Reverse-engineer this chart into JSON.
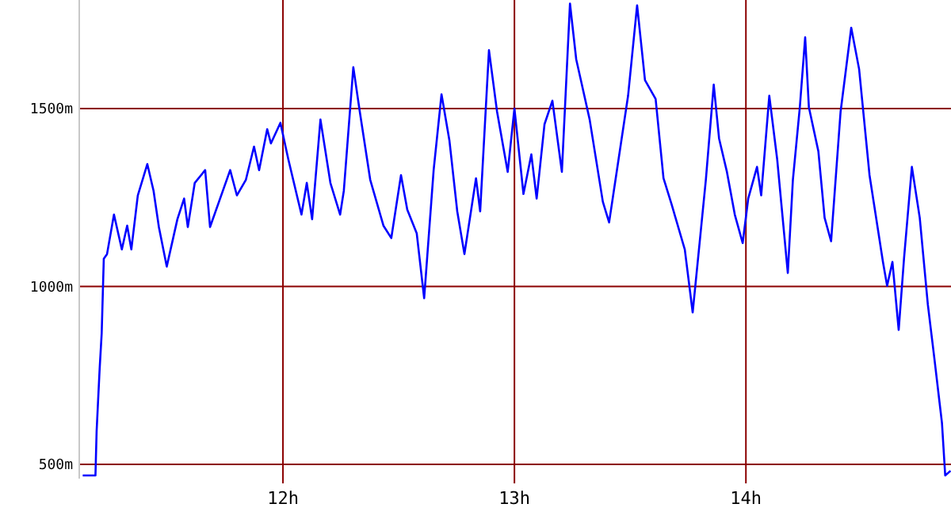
{
  "chart_data": {
    "type": "line",
    "xlim": [
      11.12,
      14.886
    ],
    "ylim": [
      460,
      1805
    ],
    "xticks": [
      {
        "value": 12,
        "label": "12h"
      },
      {
        "value": 13,
        "label": "13h"
      },
      {
        "value": 14,
        "label": "14h"
      }
    ],
    "yticks": [
      {
        "value": 500,
        "label": "500m"
      },
      {
        "value": 1000,
        "label": "1000m"
      },
      {
        "value": 1500,
        "label": "1500m"
      }
    ],
    "grid": true,
    "marker": "none",
    "line_style": "solid",
    "series": [
      {
        "color": "#0000ff",
        "x": [
          11.135,
          11.19,
          11.195,
          11.208,
          11.217,
          11.226,
          11.24,
          11.27,
          11.304,
          11.327,
          11.345,
          11.373,
          11.414,
          11.441,
          11.464,
          11.498,
          11.544,
          11.573,
          11.589,
          11.619,
          11.664,
          11.685,
          11.772,
          11.801,
          11.84,
          11.875,
          11.897,
          11.932,
          11.948,
          11.989,
          12.023,
          12.08,
          12.103,
          12.126,
          12.162,
          12.205,
          12.247,
          12.263,
          12.304,
          12.332,
          12.377,
          12.434,
          12.468,
          12.51,
          12.537,
          12.578,
          12.61,
          12.651,
          12.685,
          12.719,
          12.753,
          12.784,
          12.834,
          12.852,
          12.89,
          12.925,
          12.971,
          13.0,
          13.039,
          13.073,
          13.096,
          13.13,
          13.164,
          13.205,
          13.24,
          13.267,
          13.29,
          13.325,
          13.382,
          13.409,
          13.45,
          13.491,
          13.53,
          13.564,
          13.61,
          13.644,
          13.678,
          13.736,
          13.77,
          13.804,
          13.827,
          13.861,
          13.884,
          13.918,
          13.952,
          13.986,
          14.01,
          14.048,
          14.066,
          14.101,
          14.135,
          14.181,
          14.203,
          14.233,
          14.256,
          14.272,
          14.313,
          14.34,
          14.368,
          14.409,
          14.455,
          14.489,
          14.534,
          14.592,
          14.61,
          14.633,
          14.66,
          14.683,
          14.717,
          14.751,
          14.786,
          14.815,
          14.847,
          14.861,
          14.884
        ],
        "values": [
          469,
          469,
          593,
          767,
          869,
          1078,
          1091,
          1202,
          1104,
          1171,
          1104,
          1256,
          1344,
          1269,
          1167,
          1056,
          1189,
          1247,
          1167,
          1291,
          1327,
          1167,
          1327,
          1256,
          1300,
          1393,
          1327,
          1442,
          1402,
          1460,
          1358,
          1202,
          1291,
          1189,
          1469,
          1291,
          1202,
          1269,
          1616,
          1491,
          1300,
          1171,
          1136,
          1313,
          1216,
          1149,
          967,
          1327,
          1540,
          1411,
          1211,
          1091,
          1304,
          1211,
          1664,
          1491,
          1322,
          1500,
          1260,
          1371,
          1247,
          1456,
          1522,
          1322,
          1795,
          1638,
          1571,
          1469,
          1238,
          1180,
          1358,
          1536,
          1790,
          1580,
          1527,
          1304,
          1233,
          1104,
          927,
          1149,
          1300,
          1567,
          1416,
          1322,
          1202,
          1122,
          1247,
          1336,
          1256,
          1536,
          1358,
          1038,
          1300,
          1504,
          1700,
          1504,
          1380,
          1193,
          1127,
          1491,
          1727,
          1611,
          1313,
          1069,
          1002,
          1069,
          878,
          1078,
          1336,
          1193,
          949,
          793,
          616,
          469,
          482
        ]
      }
    ]
  }
}
